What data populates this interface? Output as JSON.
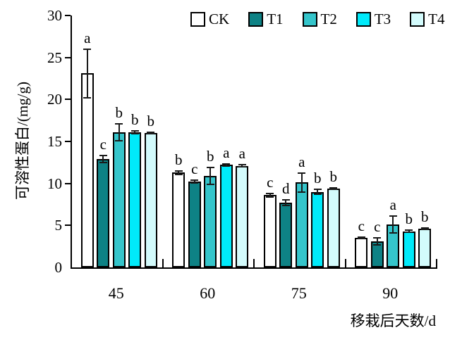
{
  "chart_data": {
    "type": "bar",
    "title": "",
    "ylabel": "可溶性蛋白/(mg/g)",
    "xlabel": "移栽后天数/d",
    "ylim": [
      0,
      30
    ],
    "yticks": [
      0,
      5,
      10,
      15,
      20,
      25,
      30
    ],
    "categories": [
      "45",
      "60",
      "75",
      "90"
    ],
    "grid": false,
    "legend_position": "top",
    "error_bars": true,
    "axis_color": "#000000",
    "series": [
      {
        "name": "CK",
        "color": "#FFFFFF",
        "values": [
          23.1,
          11.3,
          8.6,
          3.5
        ],
        "errors": [
          2.9,
          0.2,
          0.2,
          0.1
        ],
        "sig_letters": [
          "a",
          "b",
          "c",
          "c"
        ]
      },
      {
        "name": "T1",
        "color": "#0E8285",
        "values": [
          12.9,
          10.2,
          7.7,
          3.1
        ],
        "errors": [
          0.4,
          0.15,
          0.35,
          0.45
        ],
        "sig_letters": [
          "c",
          "c",
          "d",
          "c"
        ]
      },
      {
        "name": "T2",
        "color": "#35C5CB",
        "values": [
          16.1,
          10.9,
          10.1,
          5.1
        ],
        "errors": [
          1.0,
          1.0,
          1.1,
          1.0
        ],
        "sig_letters": [
          "b",
          "b",
          "a",
          "a"
        ]
      },
      {
        "name": "T3",
        "color": "#00EAFA",
        "values": [
          16.1,
          12.2,
          9.0,
          4.3
        ],
        "errors": [
          0.15,
          0.15,
          0.3,
          0.15
        ],
        "sig_letters": [
          "b",
          "a",
          "b",
          "b"
        ]
      },
      {
        "name": "T4",
        "color": "#D3FBFC",
        "values": [
          16.0,
          12.1,
          9.4,
          4.6
        ],
        "errors": [
          0.1,
          0.1,
          0.1,
          0.1
        ],
        "sig_letters": [
          "b",
          "a",
          "b",
          "b"
        ]
      }
    ]
  }
}
